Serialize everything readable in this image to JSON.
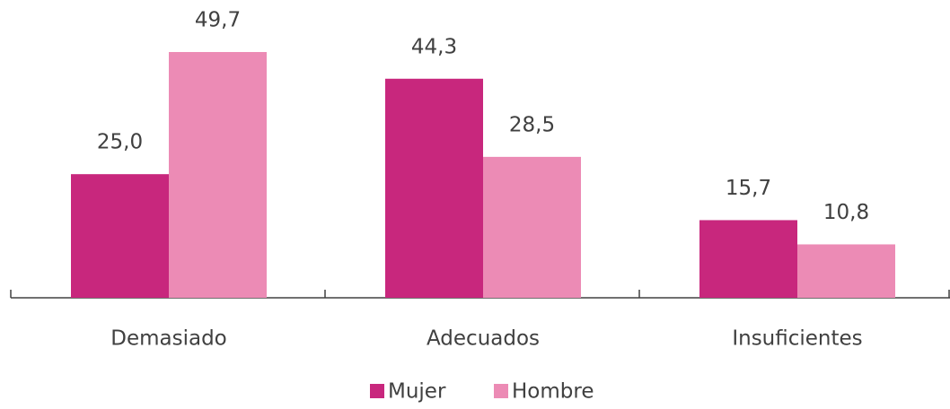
{
  "chart_data": {
    "type": "bar",
    "categories": [
      "Demasiado",
      "Adecuados",
      "Insuficientes"
    ],
    "series": [
      {
        "name": "Mujer",
        "color": "#c8277d",
        "values": [
          25.0,
          44.3,
          15.7
        ],
        "value_labels": [
          "25,0",
          "44,3",
          "15,7"
        ]
      },
      {
        "name": "Hombre",
        "color": "#ec8bb5",
        "values": [
          49.7,
          28.5,
          10.8
        ],
        "value_labels": [
          "49,7",
          "28,5",
          "10,8"
        ]
      }
    ],
    "legend": "bottom"
  }
}
